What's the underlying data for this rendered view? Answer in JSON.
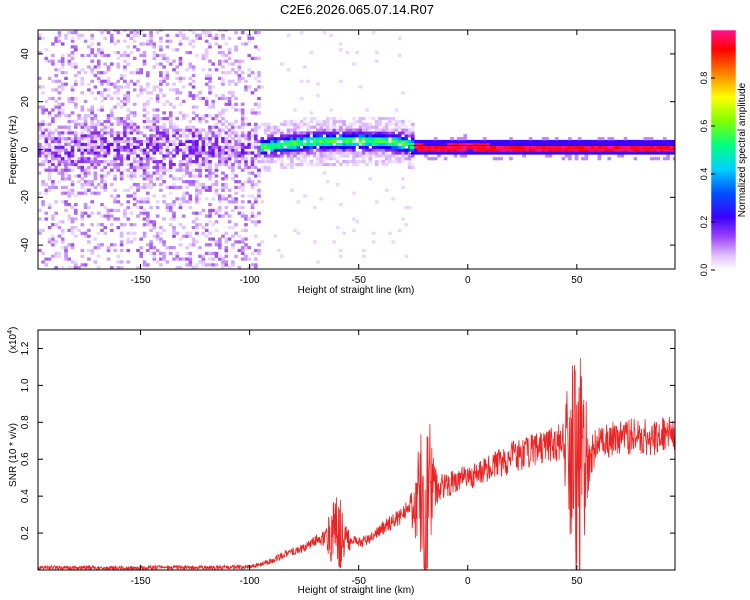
{
  "figure": {
    "title": "C2E6.2026.065.07.14.R07"
  },
  "chart_data": [
    {
      "type": "heatmap",
      "title": "",
      "xlabel": "Height of straight line (km)",
      "ylabel": "Frequency (Hz)",
      "xlim": [
        -197,
        95
      ],
      "ylim": [
        -50,
        50
      ],
      "xticks": [
        -150,
        -100,
        -50,
        0,
        50
      ],
      "yticks": [
        -40,
        -20,
        0,
        20,
        40
      ],
      "xtick_labels": [
        "-150",
        "-100",
        "-50",
        "0",
        "50"
      ],
      "ytick_labels": [
        "-40",
        "-20",
        "0",
        "20",
        "40"
      ],
      "colorbar": {
        "label": "Normalized spectral amplitude",
        "range": [
          0,
          1
        ],
        "ticks": [
          0.0,
          0.2,
          0.4,
          0.6,
          0.8
        ],
        "tick_labels": [
          "0.0",
          "0.2",
          "0.4",
          "0.6",
          "0.8"
        ],
        "colormap": [
          "#ffffff",
          "#d9b3ff",
          "#8a2be2",
          "#5a00ff",
          "#0000ff",
          "#00c8ff",
          "#00ff80",
          "#80ff00",
          "#ffff00",
          "#ff8000",
          "#ff0000",
          "#ff1493"
        ]
      },
      "ridge": {
        "description": "dominant frequency track",
        "points": [
          [
            -100,
            0
          ],
          [
            -90,
            1
          ],
          [
            -80,
            2
          ],
          [
            -70,
            3
          ],
          [
            -60,
            3
          ],
          [
            -50,
            3
          ],
          [
            -40,
            3
          ],
          [
            -30,
            2
          ],
          [
            -20,
            0
          ],
          [
            -10,
            0
          ],
          [
            0,
            1
          ],
          [
            10,
            0
          ],
          [
            50,
            0
          ],
          [
            95,
            0
          ]
        ]
      }
    },
    {
      "type": "line",
      "title": "",
      "xlabel": "Height of straight line (km)",
      "ylabel": "SNR (10 * v/v)",
      "y_multiplier": "(x10",
      "y_multiplier_exp": "4",
      "y_multiplier_close": ")",
      "xlim": [
        -197,
        95
      ],
      "ylim": [
        0,
        1.3
      ],
      "xticks": [
        -150,
        -100,
        -50,
        0,
        50
      ],
      "yticks": [
        0.2,
        0.4,
        0.6,
        0.8,
        1.0,
        1.2
      ],
      "xtick_labels": [
        "-150",
        "-100",
        "-50",
        "0",
        "50"
      ],
      "ytick_labels": [
        "0.2",
        "0.4",
        "0.6",
        "0.8",
        "1.0",
        "1.2"
      ],
      "color": "#ee2222",
      "series": [
        {
          "name": "SNR",
          "x": [
            -197,
            -180,
            -160,
            -140,
            -120,
            -110,
            -100,
            -95,
            -90,
            -85,
            -80,
            -75,
            -70,
            -65,
            -60,
            -55,
            -50,
            -45,
            -40,
            -35,
            -30,
            -25,
            -20,
            -15,
            -10,
            -5,
            0,
            5,
            10,
            15,
            20,
            25,
            30,
            35,
            40,
            45,
            50,
            55,
            60,
            65,
            70,
            75,
            80,
            85,
            90,
            95
          ],
          "y": [
            0.012,
            0.012,
            0.012,
            0.013,
            0.013,
            0.014,
            0.02,
            0.03,
            0.05,
            0.08,
            0.1,
            0.12,
            0.16,
            0.18,
            0.2,
            0.17,
            0.15,
            0.17,
            0.22,
            0.26,
            0.3,
            0.34,
            0.38,
            0.42,
            0.46,
            0.48,
            0.5,
            0.52,
            0.55,
            0.58,
            0.61,
            0.63,
            0.65,
            0.67,
            0.68,
            0.69,
            0.55,
            0.6,
            0.7,
            0.71,
            0.72,
            0.72,
            0.72,
            0.72,
            0.73,
            0.74
          ]
        }
      ],
      "bursts": [
        {
          "x": -60,
          "amp": 0.2
        },
        {
          "x": -20,
          "amp": 0.5
        },
        {
          "x": 50,
          "amp": 0.7
        }
      ]
    }
  ]
}
